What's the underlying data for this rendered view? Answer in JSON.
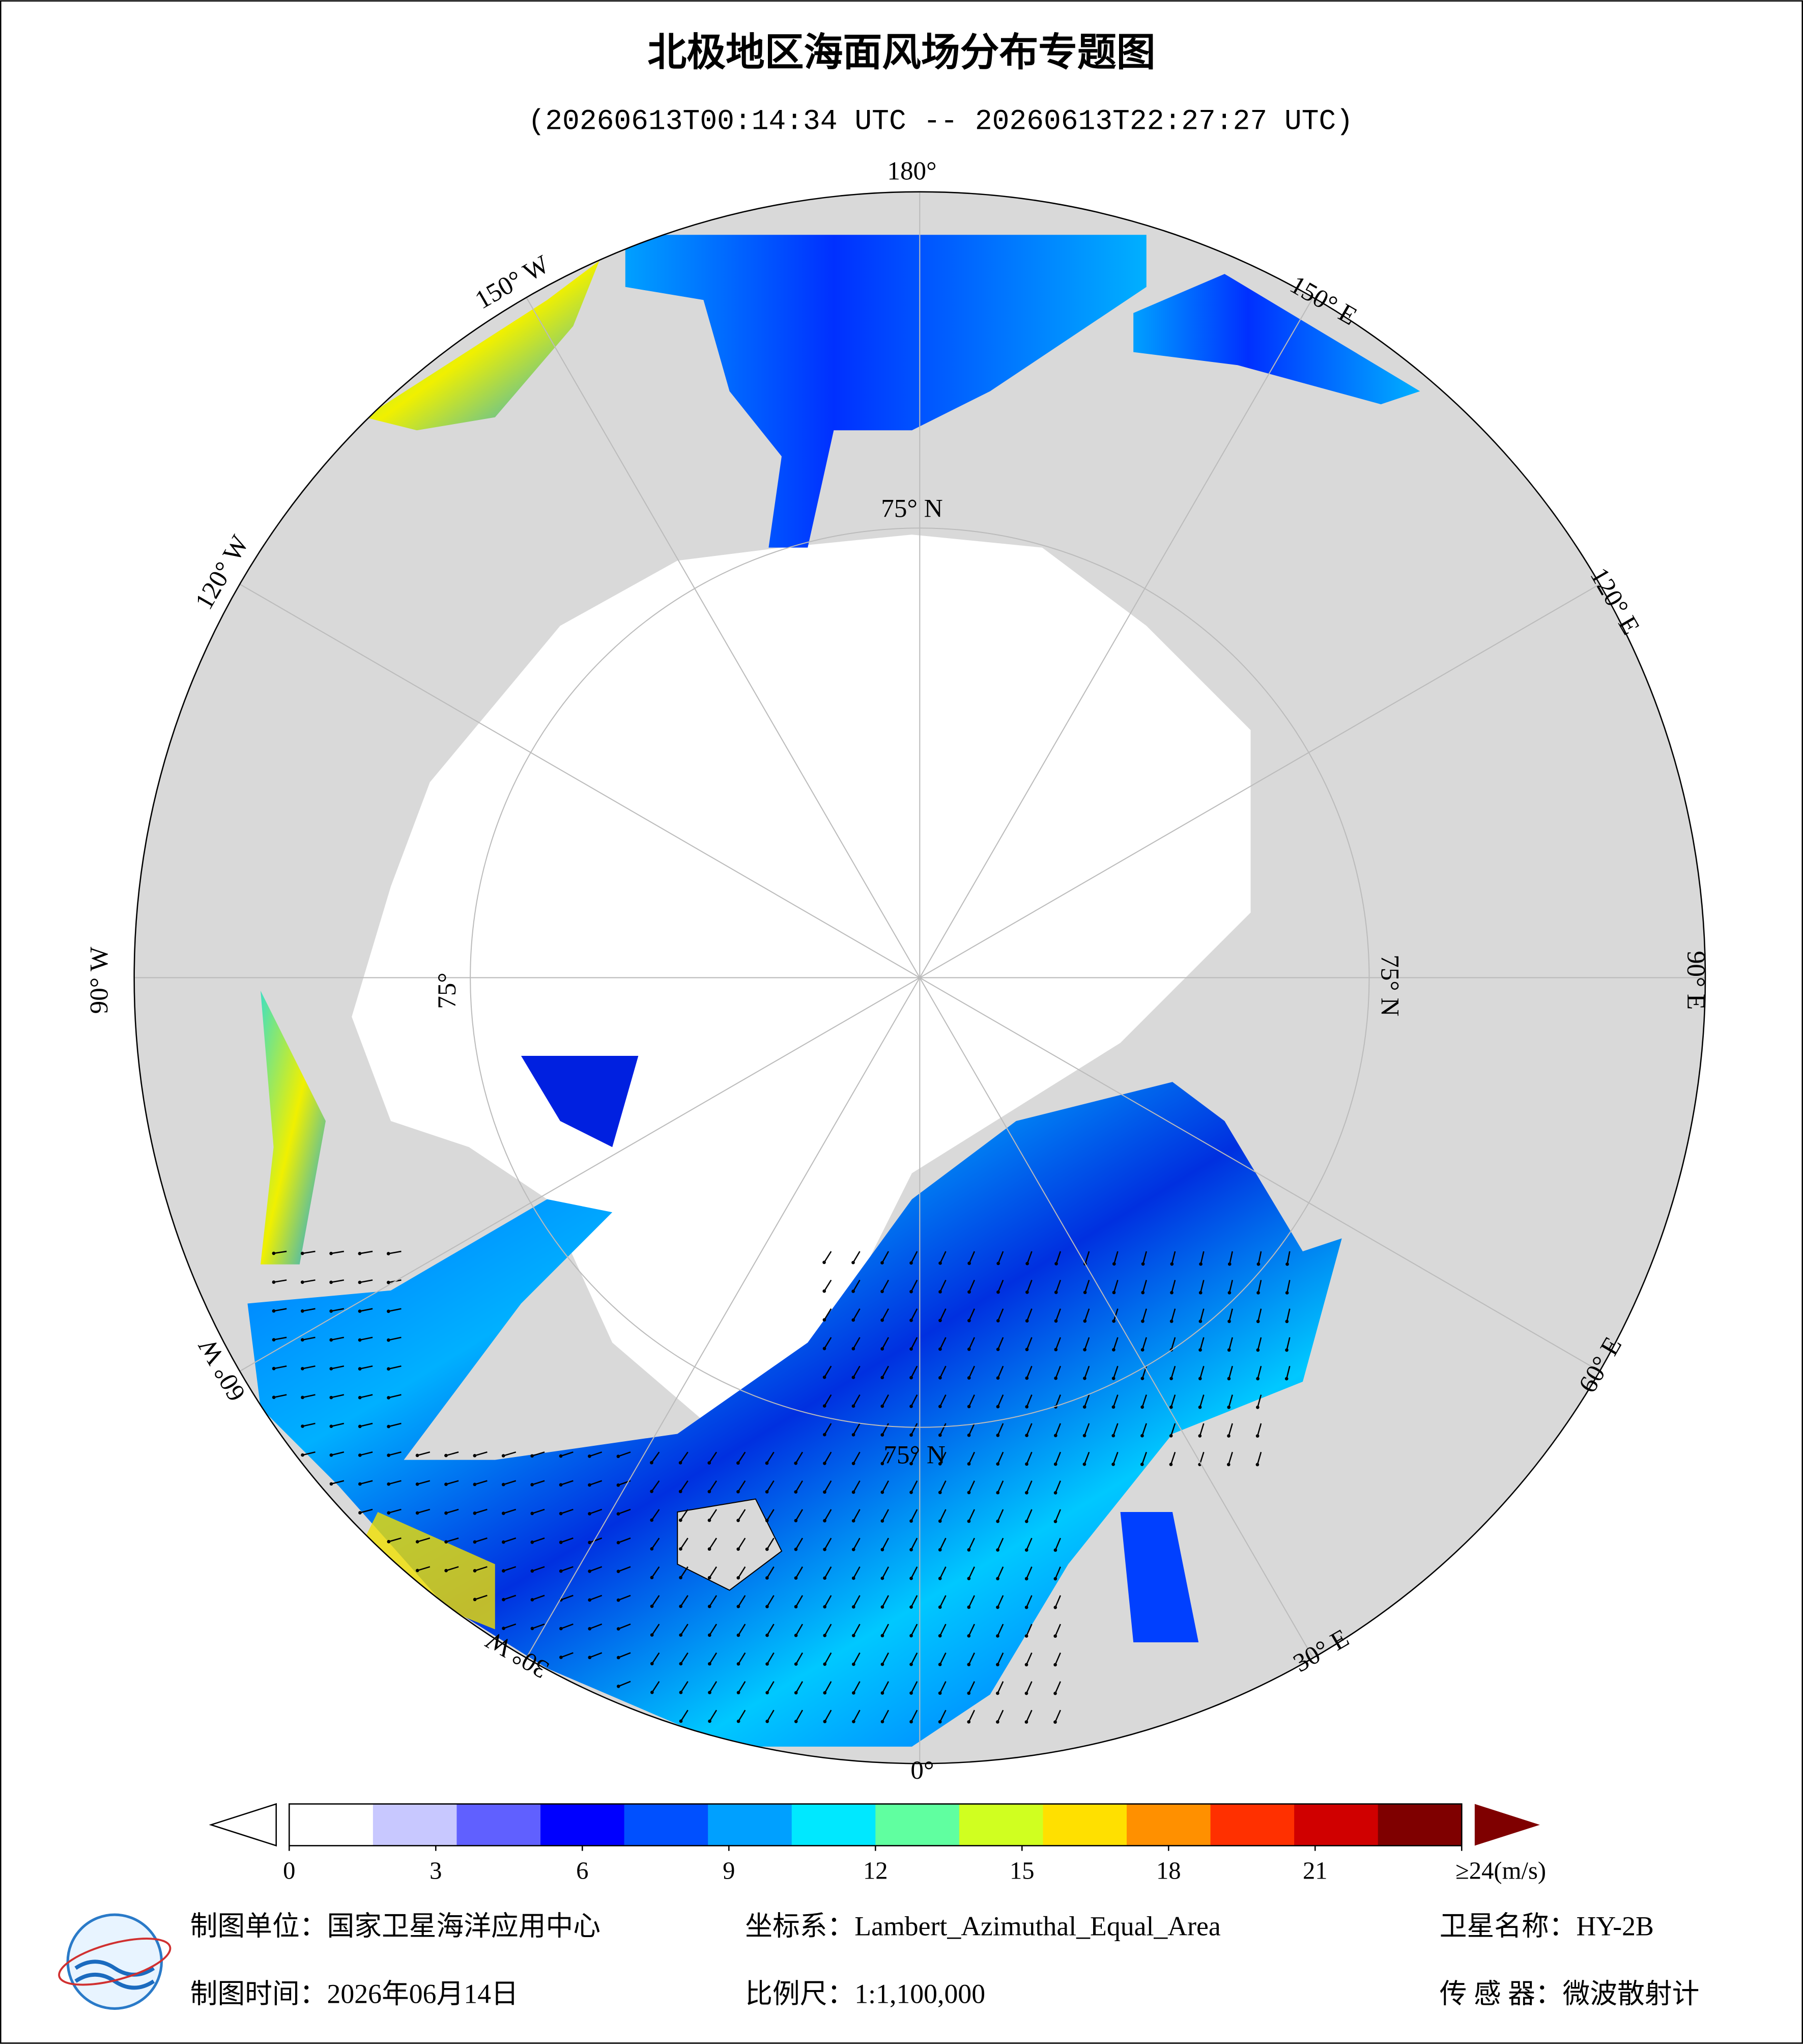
{
  "title": "北极地区海面风场分布专题图",
  "subtitle": "(20260613T00:14:34 UTC -- 20260613T22:27:27 UTC)",
  "map": {
    "longitude_labels": [
      "180°",
      "150° E",
      "120° E",
      "90° E",
      "60° E",
      "30° E",
      "0°",
      "30° W",
      "60° W",
      "90° W",
      "120° W",
      "150° W"
    ],
    "latitude_labels": [
      "75° N",
      "75° N",
      "75°",
      "75° N"
    ]
  },
  "colorbar": {
    "lim": [
      0,
      24
    ],
    "ticks": [
      0,
      3,
      6,
      9,
      12,
      15,
      18,
      21,
      {
        "value": 24,
        "label": "≥24(m/s)"
      }
    ],
    "colors": [
      "#ffffff",
      "#c8c8ff",
      "#6060ff",
      "#0000ff",
      "#0050ff",
      "#00a0ff",
      "#00e8ff",
      "#60ffa0",
      "#d0ff20",
      "#ffe000",
      "#ff9000",
      "#ff3000",
      "#d00000",
      "#7f0000"
    ]
  },
  "footer": [
    "制图单位：国家卫星海洋应用中心",
    "坐标系：Lambert_Azimuthal_Equal_Area",
    "卫星名称：HY-2B",
    "制图时间：2026年06月14日",
    "比例尺：1:1,100,000",
    "传 感 器：微波散射计"
  ]
}
